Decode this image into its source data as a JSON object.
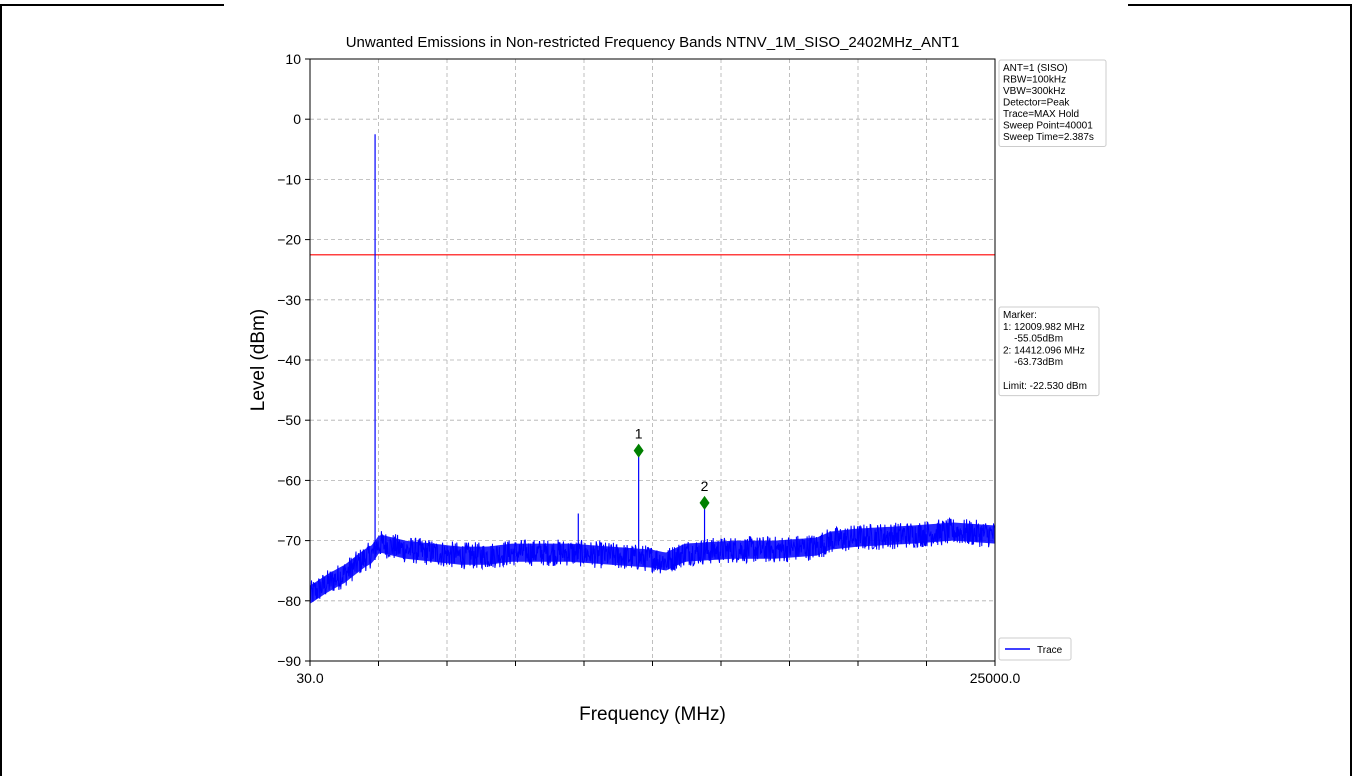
{
  "chart_data": {
    "type": "line",
    "title": "Unwanted Emissions in Non-restricted Frequency Bands NTNV_1M_SISO_2402MHz_ANT1",
    "xlabel": "Frequency (MHz)",
    "ylabel": "Level (dBm)",
    "xlim": [
      30.0,
      25000.0
    ],
    "ylim": [
      -90,
      10
    ],
    "x_tick_labels": [
      "30.0",
      "25000.0"
    ],
    "y_ticks": [
      10,
      0,
      -10,
      -20,
      -30,
      -40,
      -50,
      -60,
      -70,
      -80,
      -90
    ],
    "grid": true,
    "limit_line": {
      "value": -22.53,
      "color": "#ff0000"
    },
    "trace_color": "#0000ff",
    "series": [
      {
        "name": "Trace",
        "points": [
          [
            30,
            -79
          ],
          [
            700,
            -77
          ],
          [
            1300,
            -75.5
          ],
          [
            2000,
            -73
          ],
          [
            2380,
            -72
          ],
          [
            2402,
            -2.5
          ],
          [
            2430,
            -71
          ],
          [
            2600,
            -70.5
          ],
          [
            3500,
            -71.5
          ],
          [
            4500,
            -72
          ],
          [
            5500,
            -72.5
          ],
          [
            6500,
            -72.5
          ],
          [
            7400,
            -72
          ],
          [
            9500,
            -72
          ],
          [
            9810,
            -65.5
          ],
          [
            11000,
            -72.5
          ],
          [
            12009.982,
            -55.05
          ],
          [
            12500,
            -73
          ],
          [
            13000,
            -73.5
          ],
          [
            13700,
            -72
          ],
          [
            14412.096,
            -63.73
          ],
          [
            15500,
            -71.5
          ],
          [
            17000,
            -71.5
          ],
          [
            18500,
            -71
          ],
          [
            19000,
            -70
          ],
          [
            20000,
            -69.5
          ],
          [
            22000,
            -69
          ],
          [
            23500,
            -68.5
          ],
          [
            25000,
            -69
          ]
        ]
      }
    ],
    "markers": [
      {
        "label": "1",
        "x": 12009.982,
        "y": -55.05,
        "color": "#008000"
      },
      {
        "label": "2",
        "x": 14412.096,
        "y": -63.73,
        "color": "#008000"
      }
    ],
    "info_box": {
      "position": "top-right",
      "lines": [
        "ANT=1 (SISO)",
        "RBW=100kHz",
        "VBW=300kHz",
        "Detector=Peak",
        "Trace=MAX Hold",
        "Sweep Point=40001",
        "Sweep Time=2.387s"
      ]
    },
    "marker_box": {
      "position": "right",
      "lines": [
        "Marker:",
        "1: 12009.982 MHz",
        "    -55.05dBm",
        "2: 14412.096 MHz",
        "    -63.73dBm",
        "",
        "Limit: -22.530 dBm"
      ]
    },
    "legend": {
      "position": "bottom-right",
      "entries": [
        "Trace"
      ]
    }
  }
}
